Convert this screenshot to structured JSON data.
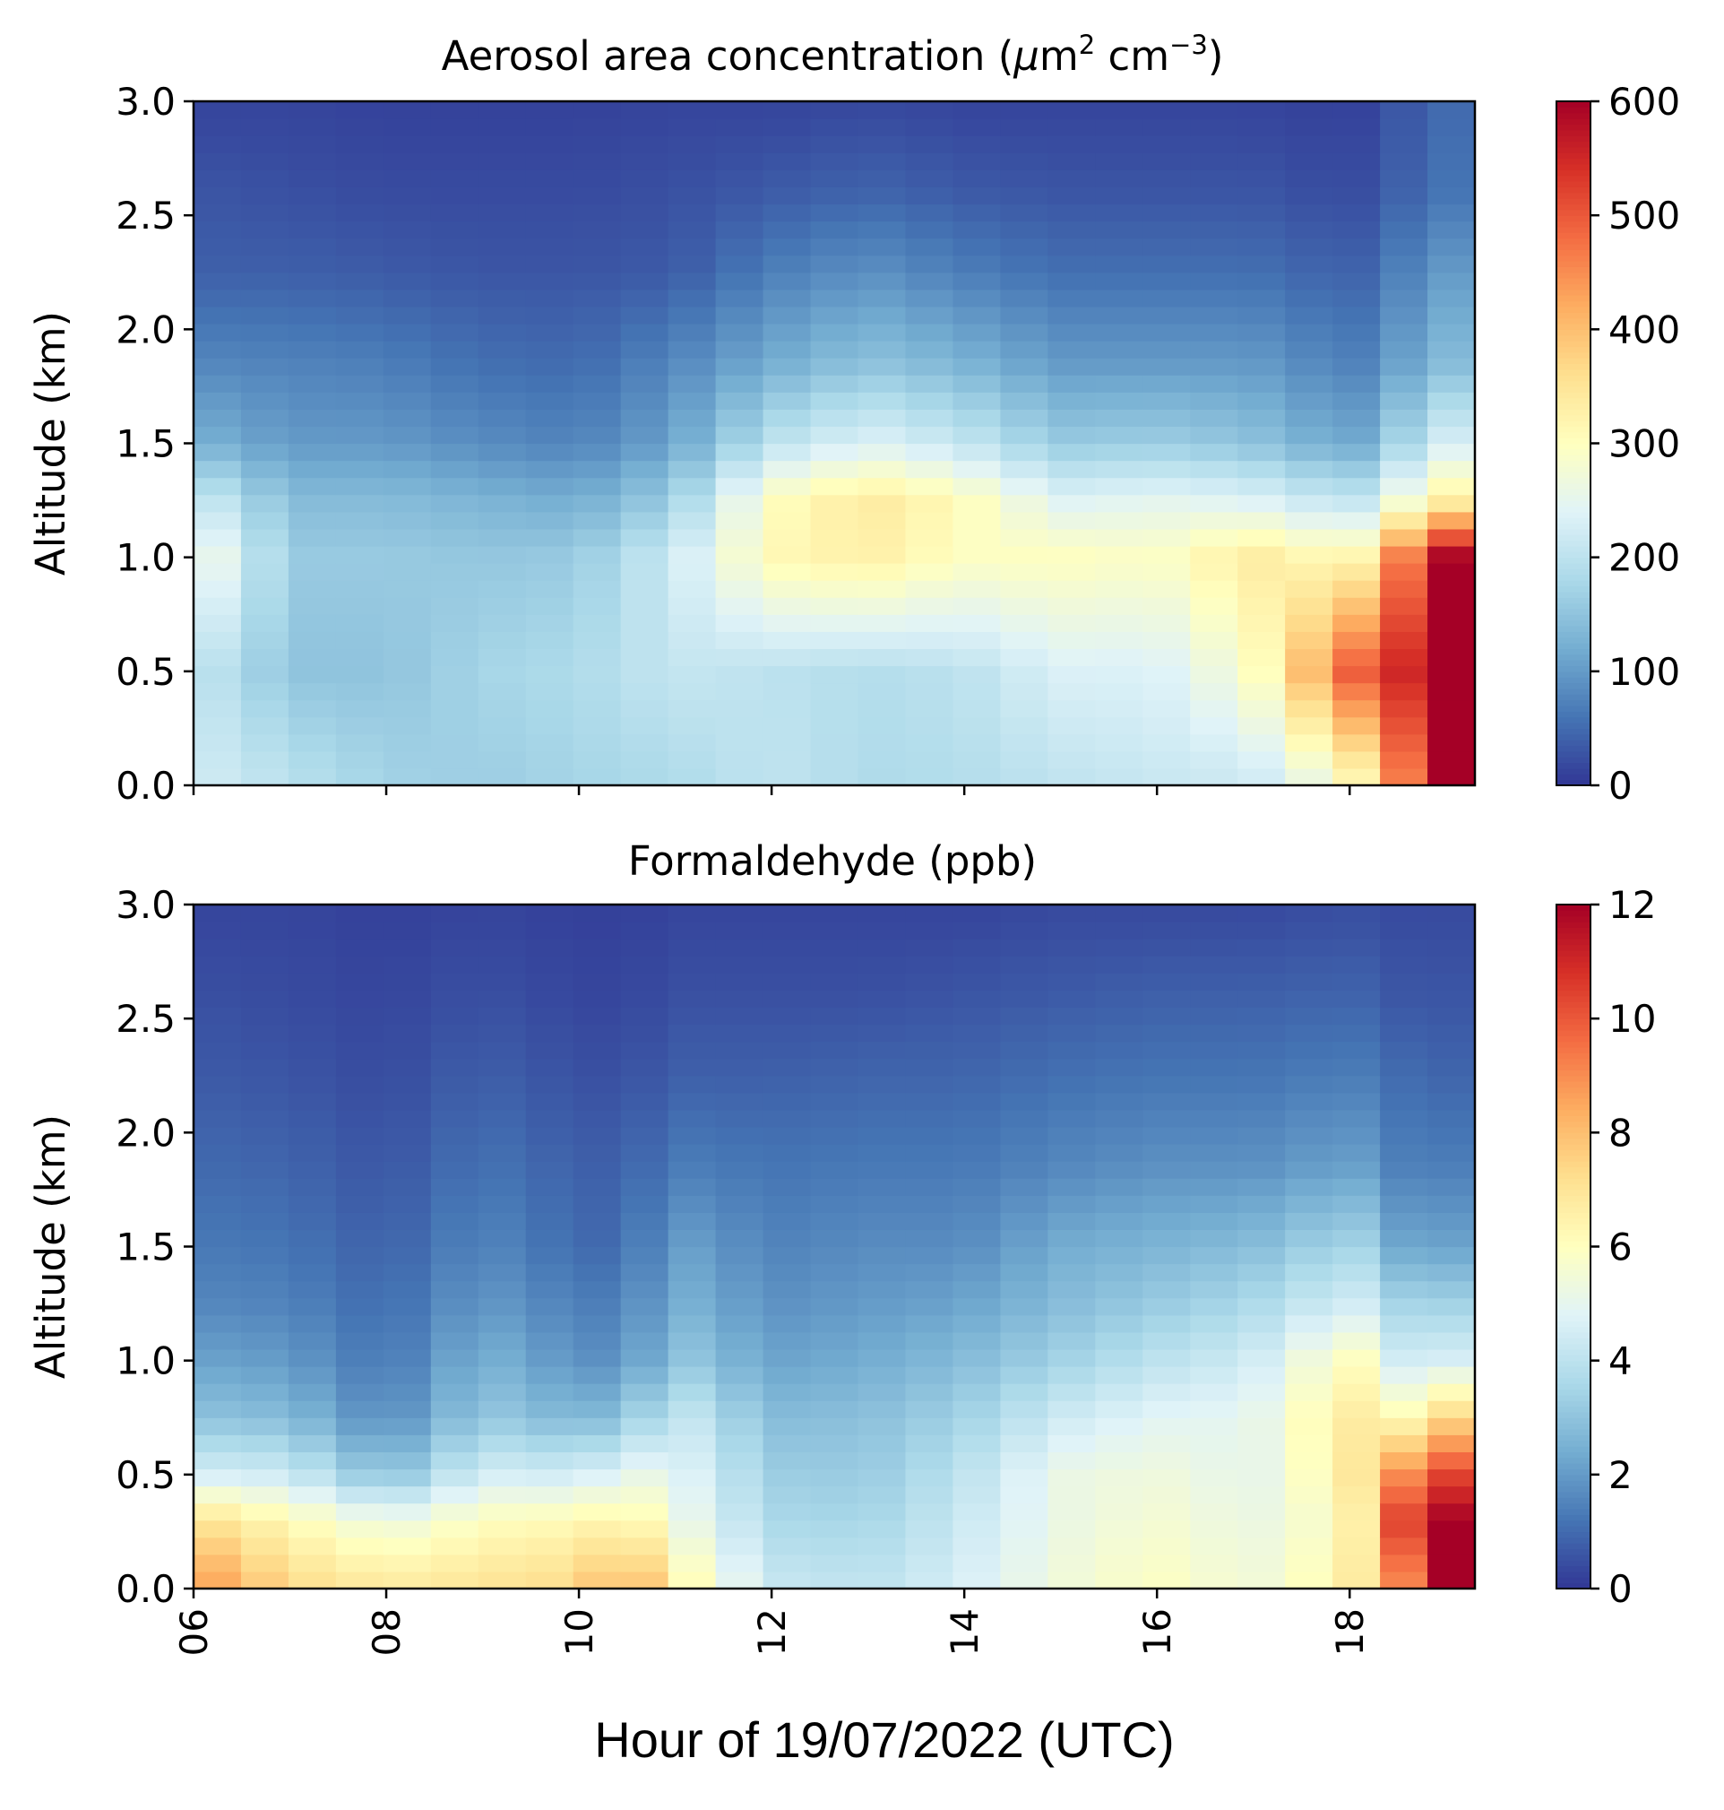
{
  "figure": {
    "xlabel": "Hour of 19/07/2022 (UTC)",
    "x_ticks": [
      "06",
      "08",
      "10",
      "12",
      "14",
      "16",
      "18"
    ],
    "x_tick_values": [
      6,
      8,
      10,
      12,
      14,
      16,
      18
    ],
    "xlim": [
      6,
      19.3
    ],
    "colormap": "RdYlBu_r",
    "colormap_stops": [
      "#313695",
      "#4575b4",
      "#74add1",
      "#abd9e9",
      "#e0f3f8",
      "#ffffbf",
      "#fee090",
      "#fdae61",
      "#f46d43",
      "#d73027",
      "#a50026"
    ]
  },
  "chart_data": [
    {
      "type": "heatmap",
      "title_main": "Aerosol area concentration (",
      "title_mu": "μ",
      "title_m": "m",
      "title_sup1": "2",
      "title_cm": " cm",
      "title_sup2": "−3",
      "title_close": ")",
      "ylabel": "Altitude (km)",
      "ylim": [
        0,
        3.0
      ],
      "y_ticks": [
        "0.0",
        "0.5",
        "1.0",
        "1.5",
        "2.0",
        "2.5",
        "3.0"
      ],
      "y_tick_values": [
        0,
        0.5,
        1.0,
        1.5,
        2.0,
        2.5,
        3.0
      ],
      "colorbar_ticks": [
        "0",
        "100",
        "200",
        "300",
        "400",
        "500",
        "600"
      ],
      "colorbar_tick_values": [
        0,
        100,
        200,
        300,
        400,
        500,
        600
      ],
      "vmin": 0,
      "vmax": 600,
      "hour_anchors": [
        6,
        7,
        8,
        9,
        10,
        11,
        12,
        13,
        14,
        15,
        16,
        17,
        18,
        19
      ],
      "alt_anchors": [
        0.05,
        0.5,
        1.0,
        1.25,
        1.5,
        1.85,
        2.25,
        2.6,
        2.95
      ],
      "profiles": [
        [
          225,
          210,
          285,
          225,
          130,
          80,
          40,
          30,
          15
        ],
        [
          195,
          150,
          160,
          140,
          100,
          75,
          40,
          25,
          15
        ],
        [
          170,
          150,
          160,
          140,
          100,
          70,
          35,
          20,
          12
        ],
        [
          165,
          175,
          155,
          130,
          85,
          55,
          30,
          20,
          12
        ],
        [
          175,
          185,
          160,
          120,
          75,
          50,
          30,
          20,
          12
        ],
        [
          185,
          210,
          220,
          165,
          110,
          80,
          35,
          25,
          15
        ],
        [
          205,
          200,
          310,
          300,
          200,
          120,
          70,
          35,
          15
        ],
        [
          185,
          190,
          330,
          340,
          240,
          150,
          90,
          45,
          20
        ],
        [
          190,
          200,
          295,
          305,
          210,
          130,
          70,
          35,
          15
        ],
        [
          205,
          235,
          300,
          240,
          160,
          100,
          55,
          30,
          15
        ],
        [
          215,
          235,
          290,
          250,
          165,
          100,
          55,
          30,
          15
        ],
        [
          220,
          285,
          340,
          240,
          150,
          100,
          55,
          30,
          15
        ],
        [
          300,
          490,
          300,
          200,
          110,
          70,
          40,
          20,
          10
        ],
        [
          600,
          600,
          600,
          330,
          230,
          140,
          100,
          60,
          50
        ]
      ]
    },
    {
      "type": "heatmap",
      "title": "Formaldehyde (ppb)",
      "ylabel": "Altitude (km)",
      "ylim": [
        0,
        3.0
      ],
      "y_ticks": [
        "0.0",
        "0.5",
        "1.0",
        "1.5",
        "2.0",
        "2.5",
        "3.0"
      ],
      "y_tick_values": [
        0,
        0.5,
        1.0,
        1.5,
        2.0,
        2.5,
        3.0
      ],
      "colorbar_ticks": [
        "0",
        "2",
        "4",
        "6",
        "8",
        "10",
        "12"
      ],
      "colorbar_tick_values": [
        0,
        2,
        4,
        6,
        8,
        10,
        12
      ],
      "vmin": 0,
      "vmax": 12,
      "hour_anchors": [
        6,
        7,
        8,
        9,
        10,
        10.5,
        11,
        12,
        13,
        14,
        15,
        16,
        17,
        18,
        18.6,
        19
      ],
      "alt_anchors": [
        0.05,
        0.3,
        0.5,
        0.75,
        1.0,
        1.25,
        1.5,
        1.85,
        2.25,
        2.6,
        2.95
      ],
      "profiles": [
        [
          8.8,
          7.2,
          4.6,
          3.0,
          2.2,
          1.6,
          1.3,
          1.0,
          0.7,
          0.5,
          0.3
        ],
        [
          7.2,
          6.2,
          4.4,
          2.8,
          2.0,
          1.5,
          1.2,
          0.9,
          0.6,
          0.4,
          0.3
        ],
        [
          6.6,
          5.2,
          2.8,
          1.6,
          1.2,
          1.0,
          0.8,
          0.6,
          0.4,
          0.3,
          0.2
        ],
        [
          6.9,
          6.0,
          4.6,
          3.2,
          2.6,
          2.0,
          1.6,
          1.2,
          0.8,
          0.5,
          0.3
        ],
        [
          7.2,
          6.2,
          4.4,
          2.6,
          1.8,
          1.4,
          1.0,
          0.8,
          0.5,
          0.3,
          0.2
        ],
        [
          8.4,
          6.6,
          5.2,
          3.0,
          1.8,
          1.4,
          1.0,
          0.8,
          0.5,
          0.3,
          0.2
        ],
        [
          6.4,
          5.4,
          5.0,
          4.4,
          3.2,
          2.6,
          2.2,
          1.4,
          0.8,
          0.5,
          0.3
        ],
        [
          4.2,
          3.6,
          3.3,
          2.8,
          2.2,
          1.8,
          1.5,
          1.2,
          0.8,
          0.5,
          0.3
        ],
        [
          4.0,
          3.5,
          3.2,
          2.9,
          2.4,
          2.0,
          1.7,
          1.3,
          0.9,
          0.5,
          0.3
        ],
        [
          4.6,
          4.3,
          4.0,
          3.4,
          2.8,
          2.2,
          1.7,
          1.3,
          0.9,
          0.6,
          0.3
        ],
        [
          5.4,
          5.2,
          5.2,
          4.4,
          3.4,
          2.8,
          2.4,
          1.6,
          1.1,
          0.7,
          0.4
        ],
        [
          5.9,
          5.6,
          5.4,
          4.9,
          4.0,
          3.2,
          2.6,
          1.8,
          1.2,
          0.8,
          0.4
        ],
        [
          5.4,
          5.2,
          5.0,
          5.0,
          4.4,
          3.6,
          2.8,
          1.8,
          1.2,
          0.8,
          0.4
        ],
        [
          6.4,
          6.0,
          6.6,
          6.8,
          6.2,
          4.6,
          3.6,
          2.2,
          1.4,
          0.9,
          0.5
        ],
        [
          9.4,
          10.8,
          9.2,
          6.2,
          4.4,
          3.4,
          2.2,
          1.4,
          1.0,
          0.6,
          0.4
        ],
        [
          12.0,
          12.0,
          10.4,
          7.4,
          4.6,
          3.4,
          2.2,
          1.4,
          0.9,
          0.6,
          0.4
        ]
      ]
    }
  ]
}
